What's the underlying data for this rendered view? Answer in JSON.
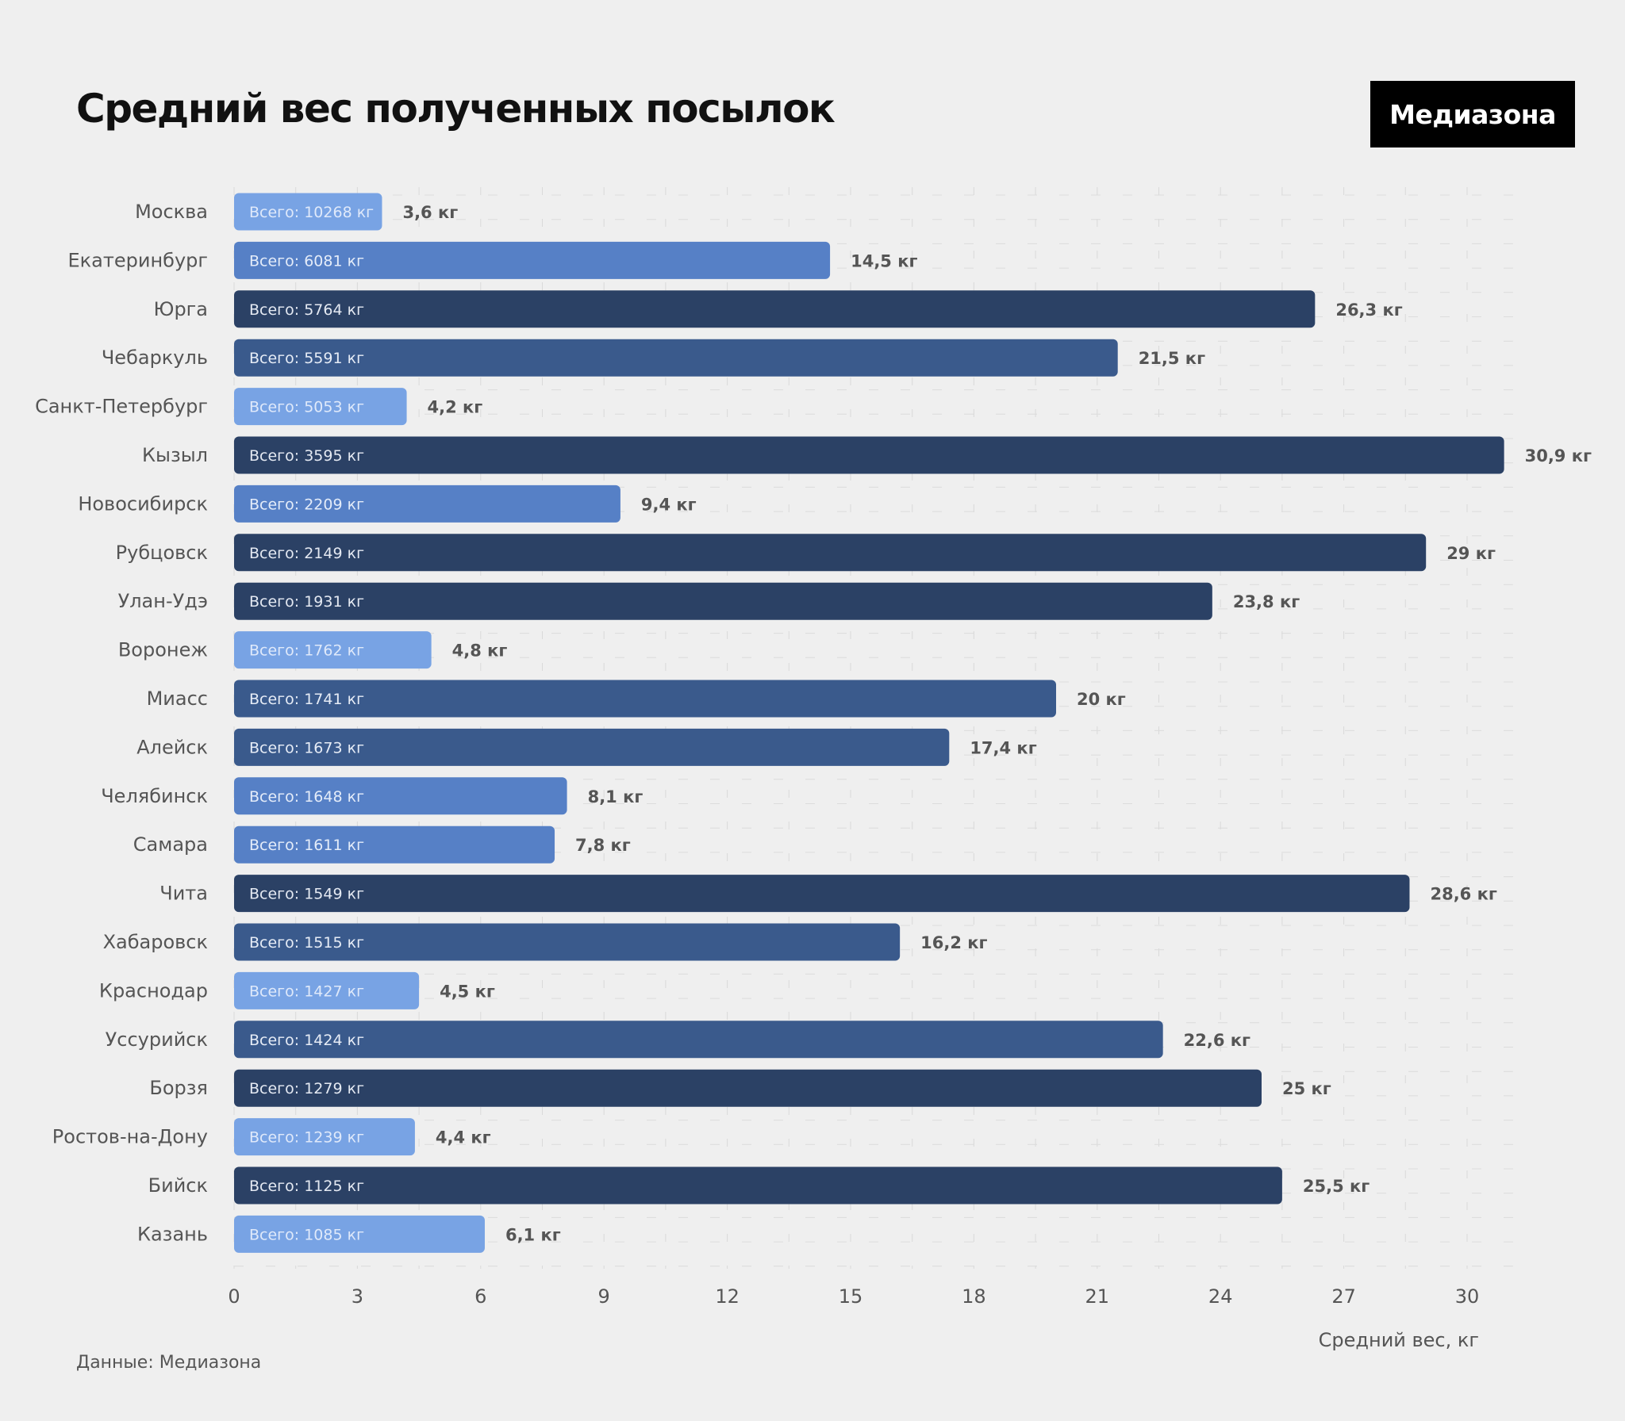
{
  "header": {
    "title": "Средний вес полученных посылок",
    "logo": "Медиазона"
  },
  "footer": {
    "source": "Данные: Медиазона"
  },
  "colors": {
    "background": "#efefef",
    "light": "#78a3e4",
    "medium": "#5680c6",
    "dark": "#3a5a8c",
    "darkest": "#2b4165"
  },
  "chart_data": {
    "type": "bar",
    "orientation": "horizontal",
    "title": "Средний вес полученных посылок",
    "xlabel": "Средний вес, кг",
    "ylabel": "",
    "xlim": [
      0,
      31
    ],
    "xticks": [
      0,
      3,
      6,
      9,
      12,
      15,
      18,
      21,
      24,
      27,
      30
    ],
    "grid": true,
    "categories": [
      "Москва",
      "Екатеринбург",
      "Юрга",
      "Чебаркуль",
      "Санкт-Петербург",
      "Кызыл",
      "Новосибирск",
      "Рубцовск",
      "Улан-Удэ",
      "Воронеж",
      "Миасс",
      "Алейск",
      "Челябинск",
      "Самара",
      "Чита",
      "Хабаровск",
      "Краснодар",
      "Уссурийск",
      "Борзя",
      "Ростов-на-Дону",
      "Бийск",
      "Казань"
    ],
    "values": [
      3.6,
      14.5,
      26.3,
      21.5,
      4.2,
      30.9,
      9.4,
      29,
      23.8,
      4.8,
      20,
      17.4,
      8.1,
      7.8,
      28.6,
      16.2,
      4.5,
      22.6,
      25,
      4.4,
      25.5,
      6.1
    ],
    "value_labels": [
      "3,6 кг",
      "14,5 кг",
      "26,3 кг",
      "21,5 кг",
      "4,2 кг",
      "30,9 кг",
      "9,4 кг",
      "29 кг",
      "23,8 кг",
      "4,8 кг",
      "20 кг",
      "17,4 кг",
      "8,1 кг",
      "7,8 кг",
      "28,6 кг",
      "16,2 кг",
      "4,5 кг",
      "22,6 кг",
      "25 кг",
      "4,4 кг",
      "25,5 кг",
      "6,1 кг"
    ],
    "totals": [
      "Всего: 10268 кг",
      "Всего: 6081 кг",
      "Всего: 5764 кг",
      "Всего: 5591 кг",
      "Всего: 5053 кг",
      "Всего: 3595 кг",
      "Всего: 2209 кг",
      "Всего: 2149 кг",
      "Всего: 1931 кг",
      "Всего: 1762 кг",
      "Всего: 1741 кг",
      "Всего: 1673 кг",
      "Всего: 1648 кг",
      "Всего: 1611 кг",
      "Всего: 1549 кг",
      "Всего: 1515 кг",
      "Всего: 1427 кг",
      "Всего: 1424 кг",
      "Всего: 1279 кг",
      "Всего: 1239 кг",
      "Всего: 1125 кг",
      "Всего: 1085 кг"
    ]
  }
}
